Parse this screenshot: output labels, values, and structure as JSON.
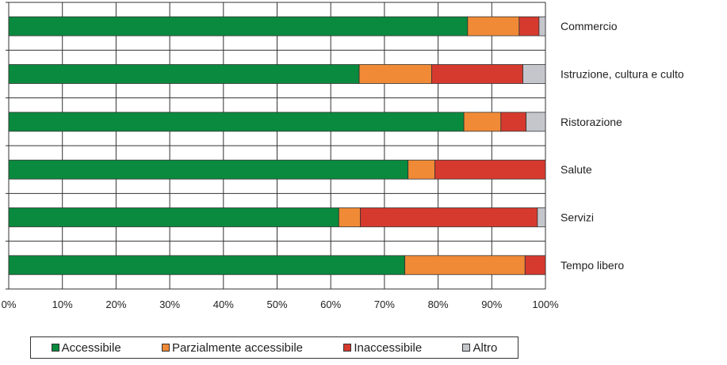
{
  "chart_data": {
    "type": "bar",
    "orientation": "horizontal",
    "stacked": true,
    "percent": true,
    "categories": [
      "Commercio",
      "Istruzione, cultura e culto",
      "Ristorazione",
      "Salute",
      "Servizi",
      "Tempo libero"
    ],
    "series": [
      {
        "name": "Accessibile",
        "color": "#0a8a3e",
        "values": [
          85.5,
          65.3,
          84.8,
          74.4,
          61.5,
          73.8
        ]
      },
      {
        "name": "Parzialmente accessibile",
        "color": "#f08a36",
        "values": [
          9.6,
          13.5,
          6.9,
          5.0,
          4.0,
          22.4
        ]
      },
      {
        "name": "Inaccessibile",
        "color": "#d63a2f",
        "values": [
          3.7,
          17.0,
          4.7,
          20.6,
          33.0,
          3.8
        ]
      },
      {
        "name": "Altro",
        "color": "#c4c6cc",
        "values": [
          1.2,
          4.2,
          3.6,
          0,
          1.5,
          0
        ]
      }
    ],
    "xlim": [
      0,
      100
    ],
    "x_ticks": [
      "0%",
      "10%",
      "20%",
      "30%",
      "40%",
      "50%",
      "60%",
      "70%",
      "80%",
      "90%",
      "100%"
    ],
    "grid": true,
    "legend_position": "bottom"
  }
}
